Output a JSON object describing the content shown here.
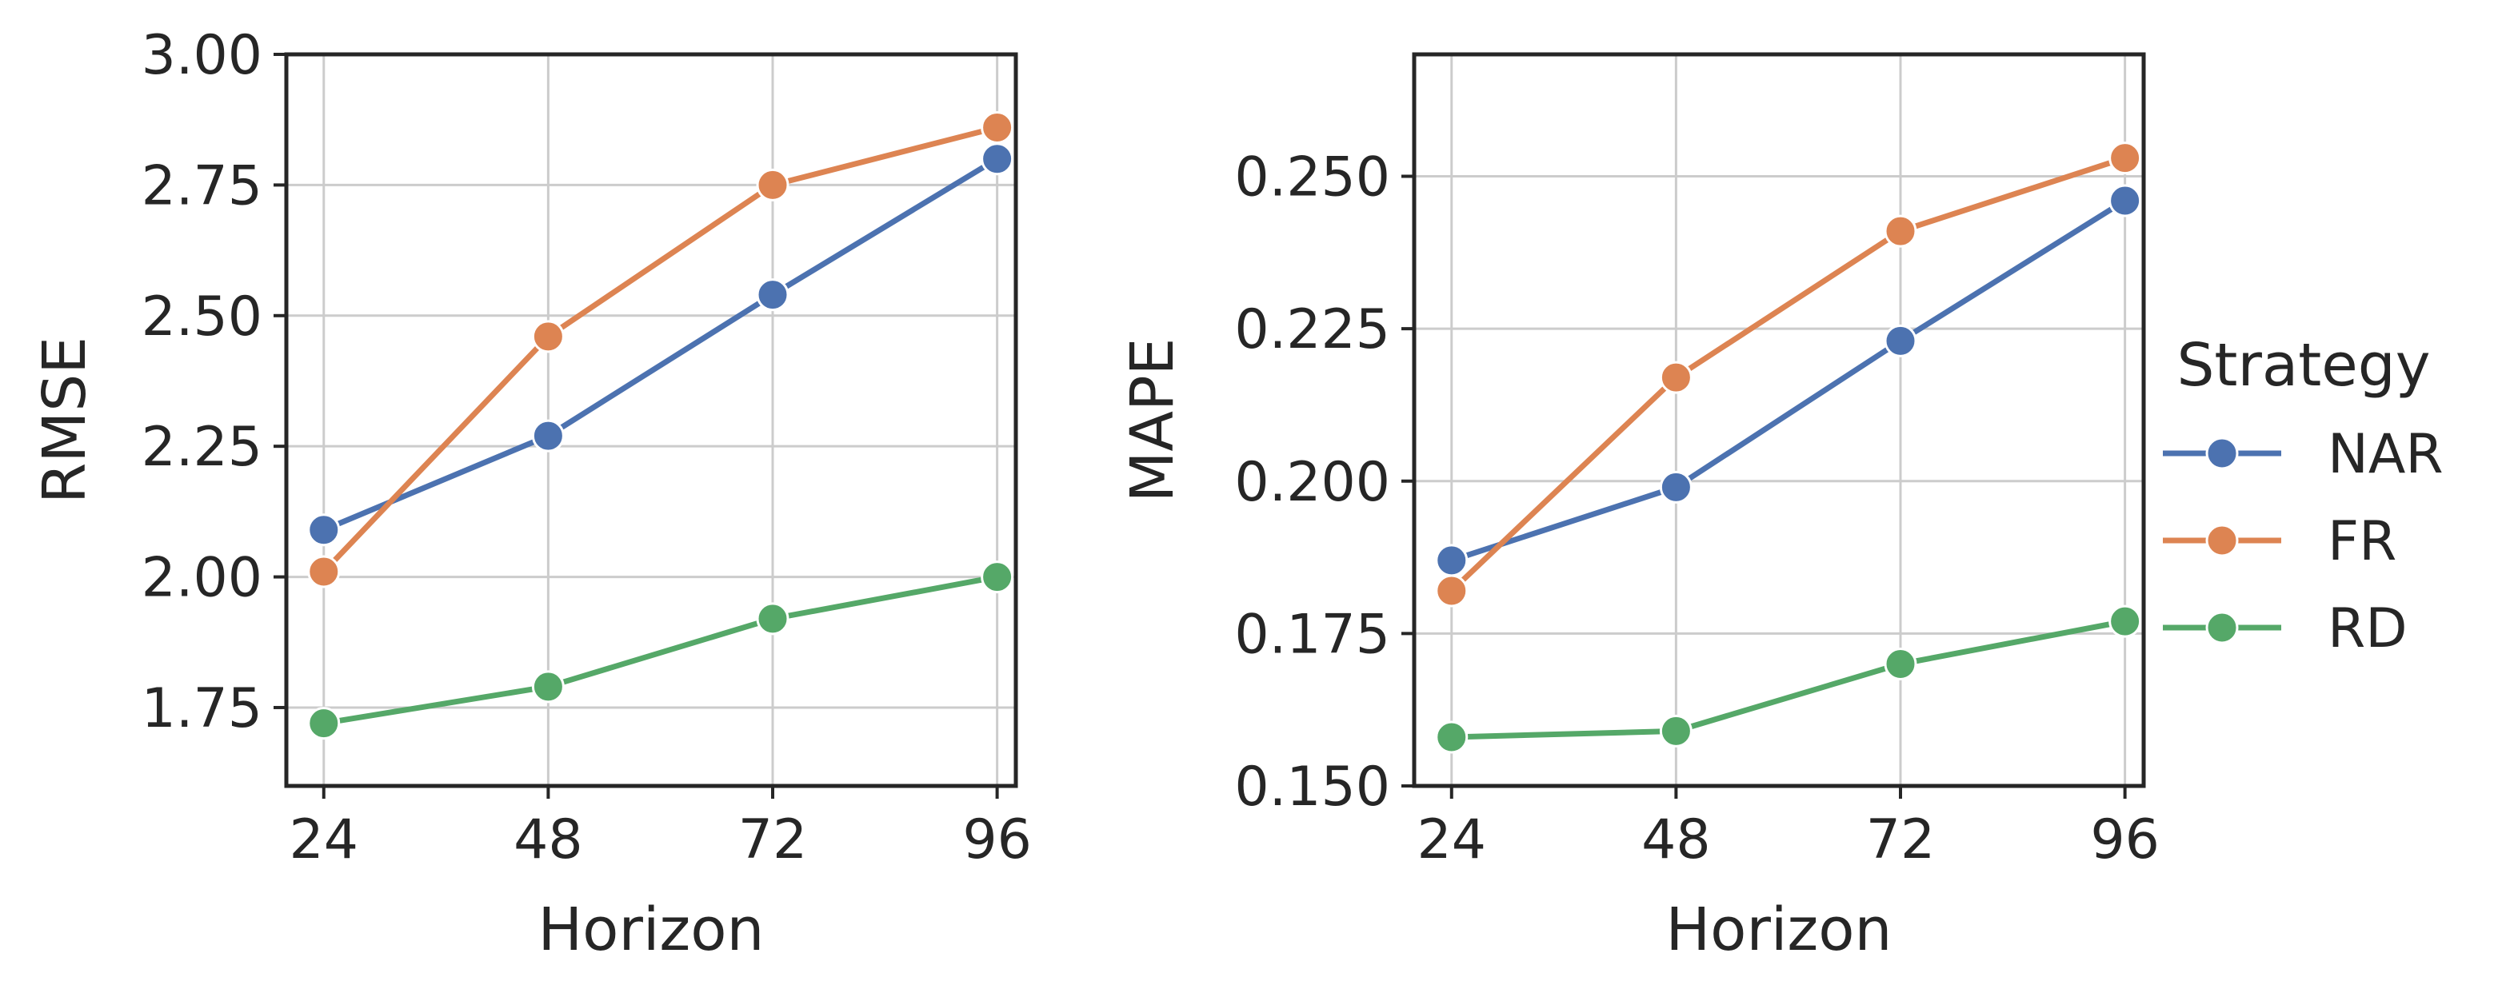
{
  "legend": {
    "title": "Strategy",
    "placement": "right",
    "entries": [
      "NAR",
      "FR",
      "RD"
    ]
  },
  "colors": {
    "NAR": "#4c72b0",
    "FR": "#dd8452",
    "RD": "#55a868",
    "grid": "#cccccc",
    "axis": "#262626"
  },
  "chart_data": [
    {
      "type": "line",
      "xlabel": "Horizon",
      "ylabel": "RMSE",
      "x": [
        24,
        48,
        72,
        96
      ],
      "xticks": [
        "24",
        "48",
        "72",
        "96"
      ],
      "yticks": [
        "1.75",
        "2.00",
        "2.25",
        "2.50",
        "2.75",
        "3.00"
      ],
      "ytick_values": [
        1.75,
        2.0,
        2.25,
        2.5,
        2.75,
        3.0
      ],
      "xlim": [
        20,
        98
      ],
      "ylim": [
        1.6,
        3.0
      ],
      "grid": true,
      "series": [
        {
          "name": "NAR",
          "values": [
            2.09,
            2.27,
            2.54,
            2.8
          ]
        },
        {
          "name": "FR",
          "values": [
            2.01,
            2.46,
            2.75,
            2.86
          ]
        },
        {
          "name": "RD",
          "values": [
            1.72,
            1.79,
            1.92,
            2.0
          ]
        }
      ]
    },
    {
      "type": "line",
      "xlabel": "Horizon",
      "ylabel": "MAPE",
      "x": [
        24,
        48,
        72,
        96
      ],
      "xticks": [
        "24",
        "48",
        "72",
        "96"
      ],
      "yticks": [
        "0.150",
        "0.175",
        "0.200",
        "0.225",
        "0.250"
      ],
      "ytick_values": [
        0.15,
        0.175,
        0.2,
        0.225,
        0.25
      ],
      "xlim": [
        20,
        98
      ],
      "ylim": [
        0.15,
        0.27
      ],
      "grid": true,
      "series": [
        {
          "name": "NAR",
          "values": [
            0.187,
            0.199,
            0.223,
            0.246
          ]
        },
        {
          "name": "FR",
          "values": [
            0.182,
            0.217,
            0.241,
            0.253
          ]
        },
        {
          "name": "RD",
          "values": [
            0.158,
            0.159,
            0.17,
            0.177
          ]
        }
      ]
    }
  ]
}
